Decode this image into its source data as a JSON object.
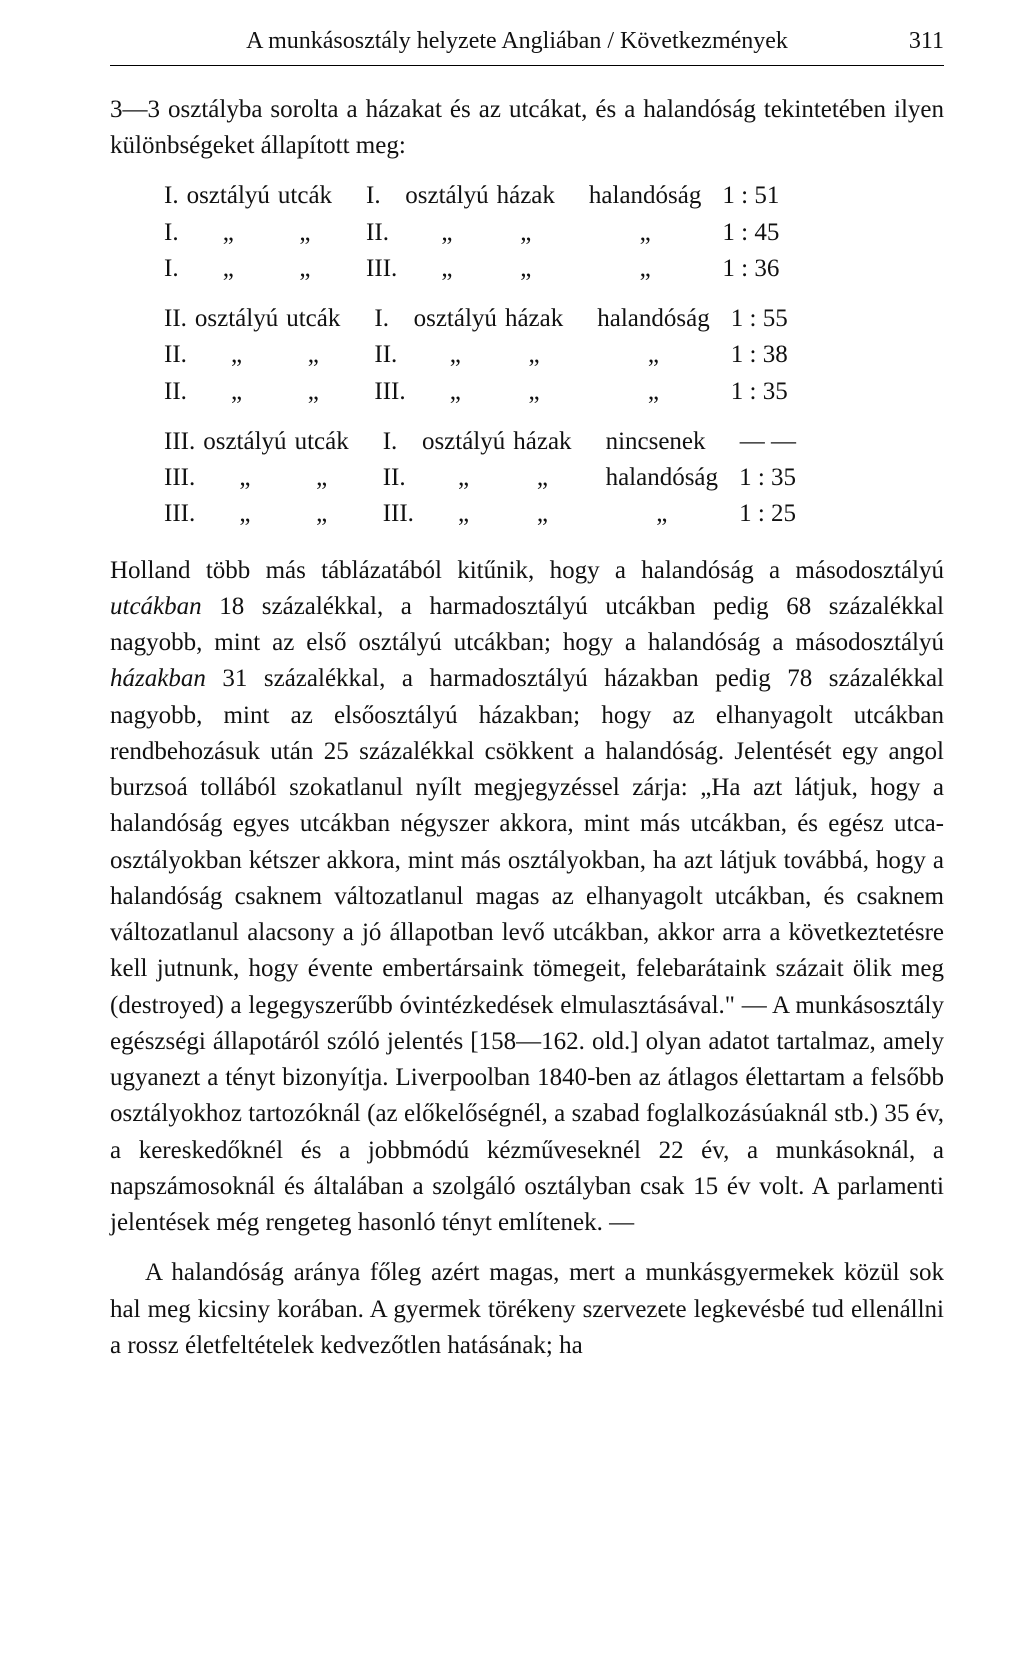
{
  "running_head": {
    "title": "A munkásosztály helyzete Angliában / Következmények",
    "page_number": "311"
  },
  "intro_para": "3—3 osztályba sorolta a házakat és az utcákat, és a halandóság tekintetében ilyen különbségeket állapított meg:",
  "tables": {
    "words": {
      "osztalyu": "osztályú",
      "utcak": "utcák",
      "hazak": "házak",
      "halandosag": "halandóság",
      "nincsenek": "nincsenek",
      "ditto": "„",
      "comma_ditto": "„",
      "dash": "— —"
    },
    "block1": {
      "street_roman": "I.",
      "rows": [
        {
          "house_roman": "I.",
          "mort_label": "halandóság",
          "ratio": "1 : 51"
        },
        {
          "house_roman": "II.",
          "mort_label": "„",
          "ratio": "1 : 45"
        },
        {
          "house_roman": "III.",
          "mort_label": "„",
          "ratio": "1 : 36"
        }
      ]
    },
    "block2": {
      "street_roman": "II.",
      "rows": [
        {
          "house_roman": "I.",
          "mort_label": "halandóság",
          "ratio": "1 : 55"
        },
        {
          "house_roman": "II.",
          "mort_label": "„",
          "ratio": "1 : 38"
        },
        {
          "house_roman": "III.",
          "mort_label": "„",
          "ratio": "1 : 35"
        }
      ]
    },
    "block3": {
      "street_roman": "III.",
      "rows": [
        {
          "house_roman": "I.",
          "mort_label": "nincsenek",
          "ratio": "— —"
        },
        {
          "house_roman": "II.",
          "mort_label": "halandóság",
          "ratio": "1 : 35"
        },
        {
          "house_roman": "III.",
          "mort_label": "„",
          "ratio": "1 : 25"
        }
      ]
    }
  },
  "body": {
    "p1_a": "Holland több más táblázatából kitűnik, hogy a halandóság a másodosztályú ",
    "p1_ital1": "utcákban",
    "p1_b": " 18 százalékkal, a harmadosztályú utcákban pedig 68 százalékkal nagyobb, mint az első osztályú utcákban; hogy a halandóság a másodosztályú ",
    "p1_ital2": "házakban",
    "p1_c": " 31 százalékkal, a harmadosztályú házakban pedig 78 százalékkal nagyobb, mint az elsőosztályú házakban; hogy az elhanyagolt utcákban rendbehozásuk után 25 százalékkal csökkent a halandóság. Jelentését egy angol burzsoá tollából szokatlanul nyílt megjegyzéssel zárja: „Ha azt látjuk, hogy a halandóság egyes utcákban négyszer akkora, mint más utcákban, és egész utca-osztályokban kétszer akkora, mint más osztályokban, ha azt látjuk továbbá, hogy a halandóság csaknem változatlanul magas az elhanyagolt utcákban, és csaknem változatlanul alacsony a jó állapotban levő utcákban, akkor arra a következtetésre kell jutnunk, hogy évente embertársaink tömegeit, felebarátaink százait ölik meg (destroyed) a legegyszerűbb óvintézkedések elmulasztásával.\" — A munkásosztály egészségi állapotáról szóló jelentés [158—162. old.] olyan adatot tartalmaz, amely ugyanezt a tényt bizonyítja. Liverpoolban 1840-ben az átlagos élettartam a felsőbb osztályokhoz tartozóknál (az előkelőségnél, a szabad foglalkozásúaknál stb.) 35 év, a kereskedőknél és a jobbmódú kézműveseknél 22 év, a munkásoknál, a napszámosoknál és általában a szolgáló osztályban csak 15 év volt. A parlamenti jelentések még rengeteg hasonló tényt említenek. —",
    "p2": "A halandóság aránya főleg azért magas, mert a munkásgyermekek közül sok hal meg kicsiny korában. A gyermek törékeny szervezete legkevésbé tud ellenállni a rossz életfeltételek kedvezőtlen hatásának; ha"
  }
}
